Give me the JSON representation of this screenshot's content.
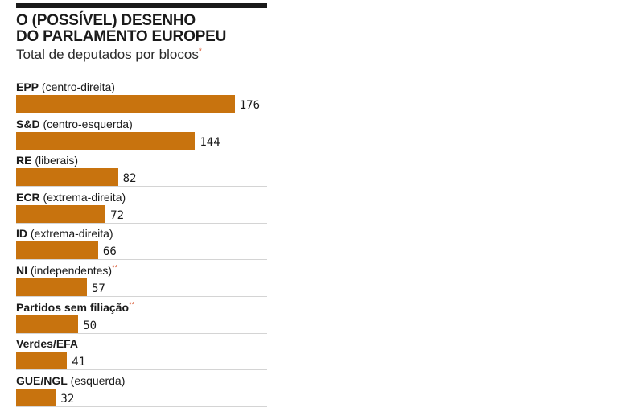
{
  "chart_data": {
    "type": "bar",
    "orientation": "horizontal",
    "title": "O (POSSÍVEL) DESENHO\nDO PARLAMENTO EUROPEU",
    "subtitle": "Total de deputados por blocos",
    "subtitle_mark": "*",
    "xlim": [
      0,
      180
    ],
    "grid": false,
    "legend": "none",
    "bar_color": "#c8730e",
    "footnote_color": "#d4451c",
    "categories": [
      {
        "name": "EPP",
        "desc": "(centro-direita)",
        "mark": "",
        "value": 176,
        "value_label": "176"
      },
      {
        "name": "S&D",
        "desc": "(centro-esquerda)",
        "mark": "",
        "value": 144,
        "value_label": "144"
      },
      {
        "name": "RE",
        "desc": "(liberais)",
        "mark": "",
        "value": 82,
        "value_label": "82"
      },
      {
        "name": "ECR",
        "desc": "(extrema-direita)",
        "mark": "",
        "value": 72,
        "value_label": "72"
      },
      {
        "name": "ID",
        "desc": "(extrema-direita)",
        "mark": "",
        "value": 66,
        "value_label": "66"
      },
      {
        "name": "NI",
        "desc": "(independentes)",
        "mark": "**",
        "value": 57,
        "value_label": "57"
      },
      {
        "name": "Partidos sem filiação",
        "desc": "",
        "mark": "**",
        "value": 50,
        "value_label": "50"
      },
      {
        "name": "Verdes/EFA",
        "desc": "",
        "mark": "",
        "value": 41,
        "value_label": "41"
      },
      {
        "name": "GUE/NGL",
        "desc": "(esquerda)",
        "mark": "",
        "value": 32,
        "value_label": "32"
      }
    ]
  }
}
